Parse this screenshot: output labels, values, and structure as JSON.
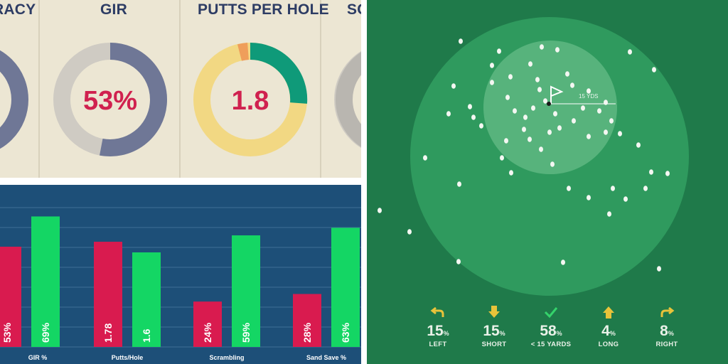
{
  "donuts": {
    "headers": [
      "RACY",
      "GIR",
      "PUTTS PER HOLE",
      "SC"
    ],
    "gir_value": "53%",
    "putts_value": "1.8"
  },
  "chart_data": {
    "type": "bar",
    "categories": [
      "GIR %",
      "Putts/Hole",
      "Scrambling",
      "Sand Save %"
    ],
    "series": [
      {
        "values": [
          53,
          1.78,
          24,
          28
        ],
        "labels": [
          "53%",
          "1.78",
          "24%",
          "28%"
        ],
        "color": "#d91b4f"
      },
      {
        "values": [
          69,
          1.6,
          59,
          63
        ],
        "labels": [
          "69%",
          "1.6",
          "59%",
          "63%"
        ],
        "color": "#14d664"
      }
    ],
    "xlabel": "",
    "ylabel": "",
    "grid": true
  },
  "shots": {
    "distance_label": "15 YDS",
    "stats": [
      {
        "icon": "arrow-back-left-icon",
        "value": "15",
        "unit": "%",
        "label": "LEFT"
      },
      {
        "icon": "arrow-down-icon",
        "value": "15",
        "unit": "%",
        "label": "SHORT"
      },
      {
        "icon": "checkmark-icon",
        "value": "58",
        "unit": "%",
        "label": "< 15 YARDS"
      },
      {
        "icon": "arrow-up-icon",
        "value": "4",
        "unit": "%",
        "label": "LONG"
      },
      {
        "icon": "arrow-forward-right-icon",
        "value": "8",
        "unit": "%",
        "label": "RIGHT"
      }
    ],
    "colors": {
      "accent": "#e8c33a",
      "check": "#35d36b"
    }
  }
}
